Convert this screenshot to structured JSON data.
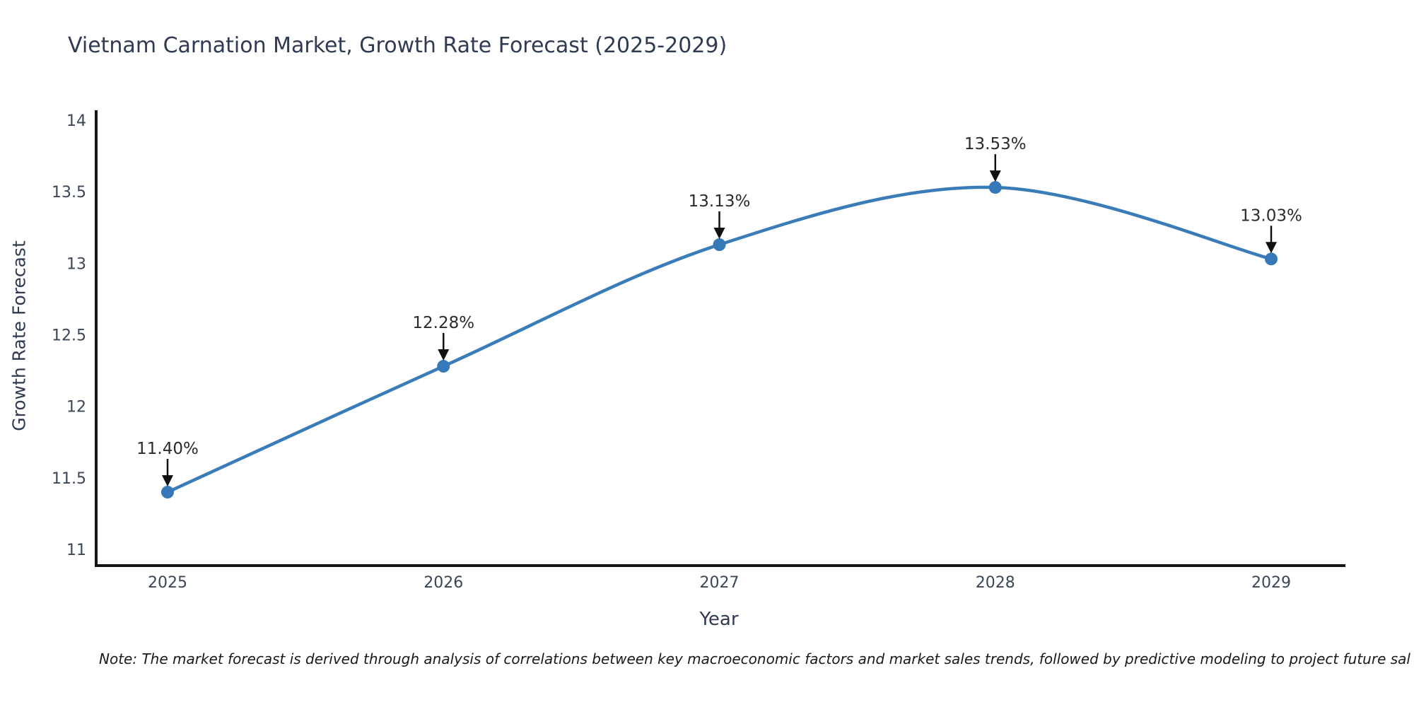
{
  "note": "Note: The market forecast is derived through analysis of correlations between key macroeconomic factors and market sales trends, followed by predictive modeling to project future sal",
  "chart_data": {
    "type": "line",
    "title": "Vietnam Carnation Market, Growth Rate Forecast (2025-2029)",
    "xlabel": "Year",
    "ylabel": "Growth Rate Forecast",
    "categories": [
      "2025",
      "2026",
      "2027",
      "2028",
      "2029"
    ],
    "series": [
      {
        "name": "Growth Rate Forecast",
        "values": [
          11.4,
          12.28,
          13.13,
          13.53,
          13.03
        ],
        "point_labels": [
          "11.40%",
          "12.28%",
          "13.13%",
          "13.53%",
          "13.03%"
        ]
      }
    ],
    "y_ticks": [
      11,
      11.5,
      12,
      12.5,
      13,
      13.5,
      14
    ],
    "ylim": [
      10.89,
      14.06
    ],
    "grid": false,
    "legend_position": "none",
    "line_style": "spline",
    "marker": "circle",
    "annotations": "value labels with down arrows above each point",
    "colors": {
      "line": "#3a7cb8",
      "marker": "#3579b8",
      "spine": "#141414",
      "arrow": "#111111",
      "title_text": "#2f3b52",
      "tick_text": "#3b4657",
      "annotation_text": "#2b2b2b"
    }
  }
}
